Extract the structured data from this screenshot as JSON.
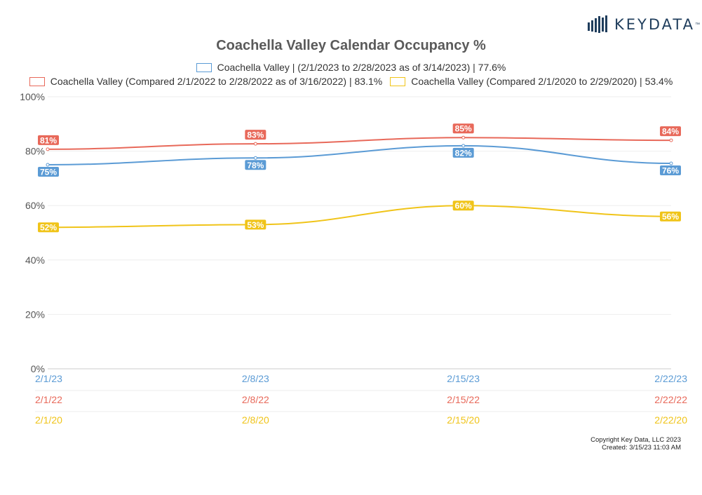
{
  "logo": {
    "text": "KEYDATA",
    "tm": "™"
  },
  "chart_data": {
    "type": "line",
    "title": "Coachella Valley Calendar Occupancy %",
    "ylim": [
      0,
      100
    ],
    "y_ticks": [
      0,
      20,
      40,
      60,
      80,
      100
    ],
    "y_tick_labels": [
      "0%",
      "20%",
      "40%",
      "60%",
      "80%",
      "100%"
    ],
    "grid": true,
    "series": [
      {
        "name": "Coachella Valley | (2/1/2023 to 2/28/2023 as of 3/14/2023) | 77.6%",
        "color": "#5b9bd5",
        "x": [
          "2/1/23",
          "2/8/23",
          "2/15/23",
          "2/22/23"
        ],
        "values": [
          75,
          77.5,
          82,
          75.5
        ],
        "labels": [
          "75%",
          "78%",
          "82%",
          "76%"
        ]
      },
      {
        "name": "Coachella Valley (Compared 2/1/2022 to 2/28/2022 as of 3/16/2022) | 83.1%",
        "color": "#e8695a",
        "x": [
          "2/1/22",
          "2/8/22",
          "2/15/22",
          "2/22/22"
        ],
        "values": [
          80.7,
          82.7,
          85,
          84
        ],
        "labels": [
          "81%",
          "83%",
          "85%",
          "84%"
        ]
      },
      {
        "name": "Coachella Valley (Compared 2/1/2020 to 2/29/2020) | 53.4%",
        "color": "#f0c419",
        "x": [
          "2/1/20",
          "2/8/20",
          "2/15/20",
          "2/22/20"
        ],
        "values": [
          52,
          53,
          60,
          56
        ],
        "labels": [
          "52%",
          "53%",
          "60%",
          "56%"
        ]
      }
    ]
  },
  "copyright": {
    "line1": "Copyright Key Data, LLC 2023",
    "line2": "Created: 3/15/23 11:03 AM"
  }
}
